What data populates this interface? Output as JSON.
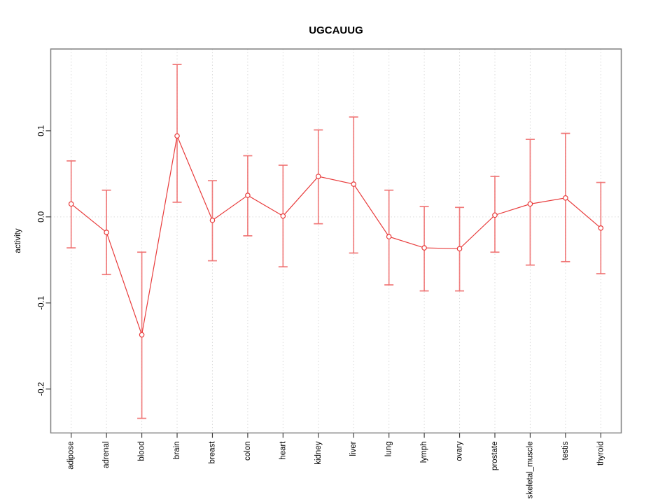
{
  "title": "UGCAUUG",
  "chart_data": {
    "type": "line",
    "title": "UGCAUUG",
    "xlabel": "",
    "ylabel": "activity",
    "categories": [
      "adipose",
      "adrenal",
      "blood",
      "brain",
      "breast",
      "colon",
      "heart",
      "kidney",
      "liver",
      "lung",
      "lymph",
      "ovary",
      "prostate",
      "skeletal_muscle",
      "testis",
      "thyroid"
    ],
    "series": [
      {
        "name": "activity",
        "values": [
          0.015,
          -0.018,
          -0.137,
          0.094,
          -0.004,
          0.025,
          0.001,
          0.047,
          0.038,
          -0.023,
          -0.036,
          -0.037,
          0.002,
          0.015,
          0.022,
          -0.013
        ],
        "ci_high": [
          0.065,
          0.031,
          -0.041,
          0.177,
          0.042,
          0.071,
          0.06,
          0.101,
          0.116,
          0.031,
          0.012,
          0.011,
          0.047,
          0.09,
          0.097,
          0.04
        ],
        "ci_low": [
          -0.036,
          -0.067,
          -0.234,
          0.017,
          -0.051,
          -0.022,
          -0.058,
          -0.008,
          -0.042,
          -0.079,
          -0.086,
          -0.086,
          -0.041,
          -0.056,
          -0.052,
          -0.066
        ]
      }
    ],
    "ytick_values": [
      0.1,
      0.0,
      -0.1,
      -0.2
    ],
    "ytick_labels": [
      "0.1",
      "0.0",
      "-0.1",
      "-0.2"
    ],
    "ylim": [
      -0.251,
      0.195
    ],
    "grid": {
      "vertical": "dotted line at each category",
      "horizontal": "dotted line at 0.0"
    },
    "legend_position": "none",
    "marker": "open-circle",
    "error_bars": true,
    "colors": {
      "series": "#e83b3b",
      "error_bar": "#ef6b6b",
      "grid": "#dadada",
      "frame": "#808080",
      "tick": "#404040",
      "background": "#ffffff"
    }
  }
}
